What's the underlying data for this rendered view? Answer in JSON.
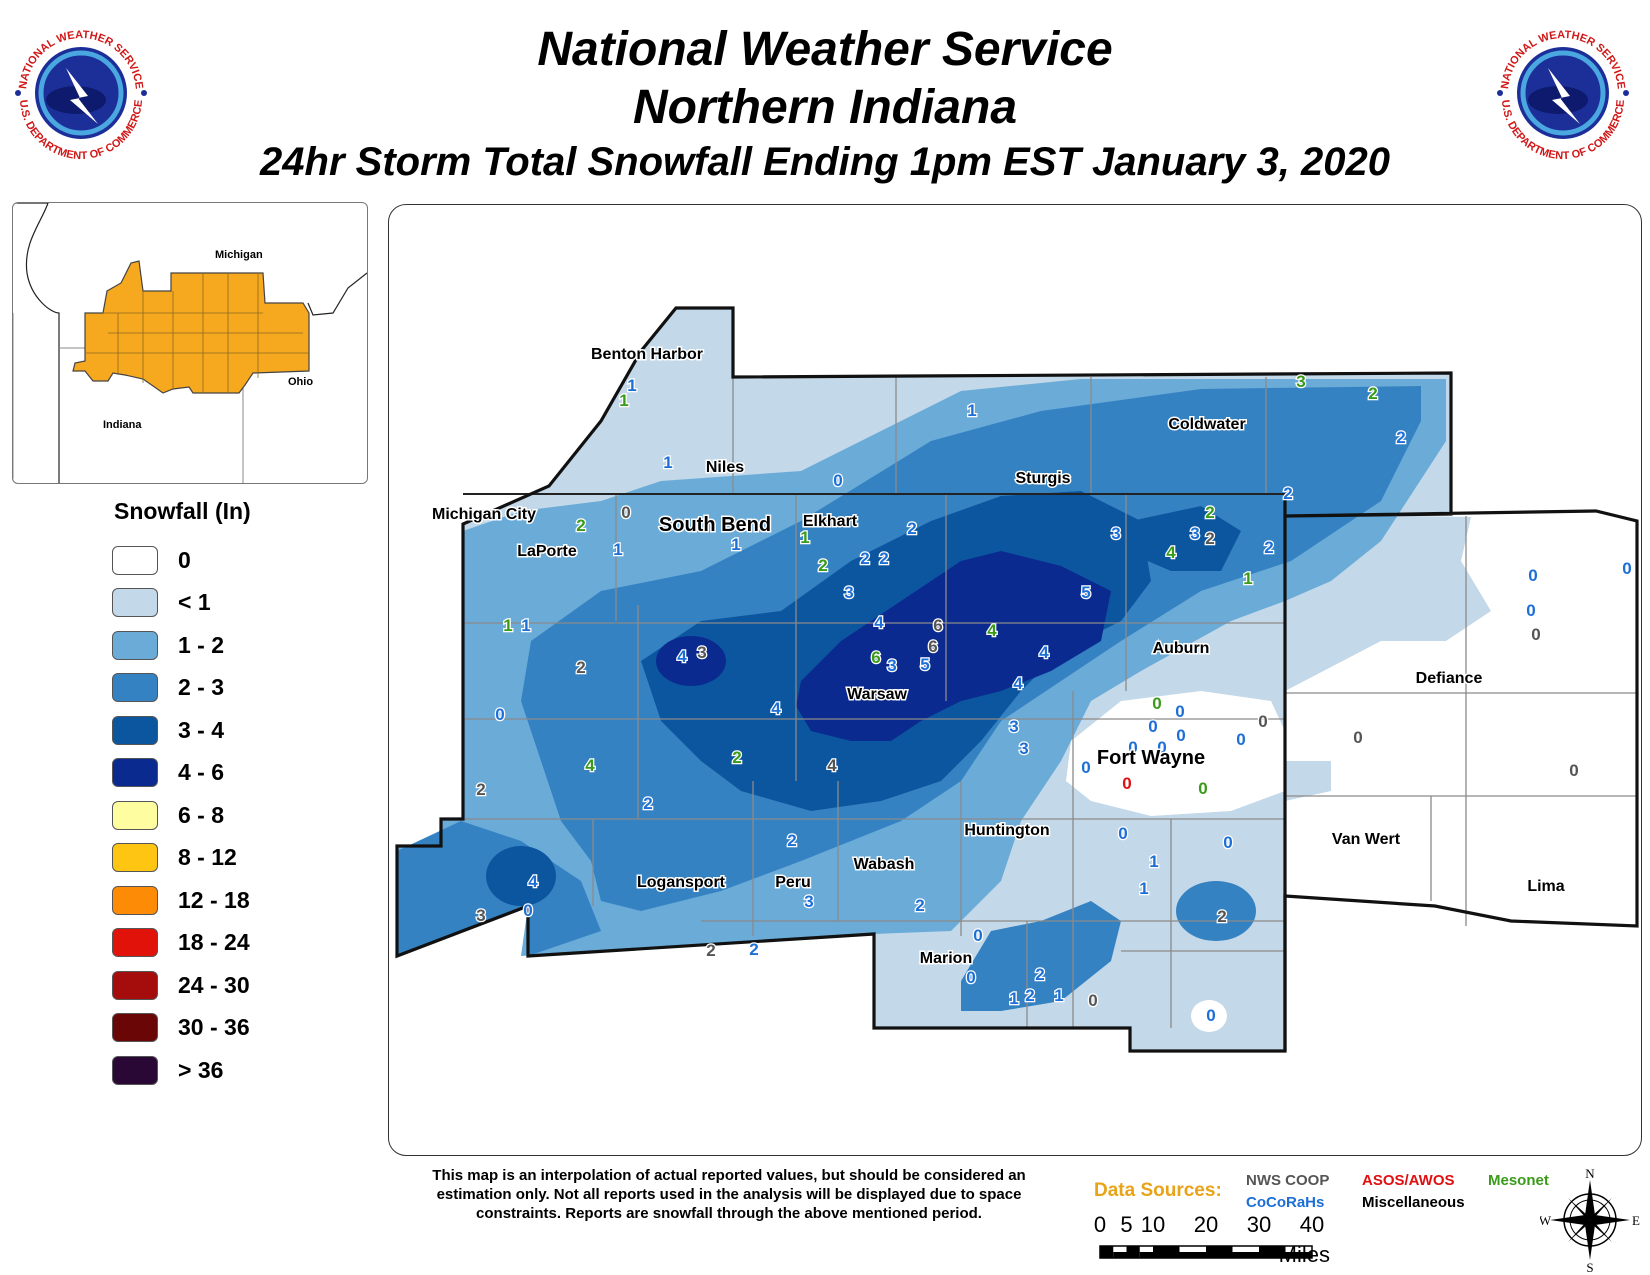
{
  "title": {
    "line1": "National Weather Service",
    "line2": "Northern Indiana",
    "line3": "24hr Storm Total Snowfall Ending 1pm EST January 3, 2020"
  },
  "seal": {
    "top_text": "NATIONAL WEATHER SERVICE",
    "bottom_text": "U.S. DEPARTMENT OF COMMERCE"
  },
  "inset": {
    "labels": {
      "michigan": "Michigan",
      "ohio": "Ohio",
      "indiana": "Indiana"
    },
    "fill_color": "#f6a81e"
  },
  "legend": {
    "title": "Snowfall (In)",
    "items": [
      {
        "label": "0",
        "color": "#ffffff"
      },
      {
        "label": "< 1",
        "color": "#c3d8e8"
      },
      {
        "label": "1 - 2",
        "color": "#6aabd8"
      },
      {
        "label": "2 - 3",
        "color": "#3582c3"
      },
      {
        "label": "3 - 4",
        "color": "#0c56a0"
      },
      {
        "label": "4 - 6",
        "color": "#0a2a90"
      },
      {
        "label": "6 - 8",
        "color": "#fefea0"
      },
      {
        "label": "8 - 12",
        "color": "#fec612"
      },
      {
        "label": "12 - 18",
        "color": "#fd8b06"
      },
      {
        "label": "18 - 24",
        "color": "#e0120a"
      },
      {
        "label": "24 - 30",
        "color": "#a50c0c"
      },
      {
        "label": "30 - 36",
        "color": "#6a0606"
      },
      {
        "label": "> 36",
        "color": "#2a0836"
      }
    ]
  },
  "map": {
    "cities": [
      {
        "name": "Benton Harbor",
        "big": false
      },
      {
        "name": "Niles",
        "big": false
      },
      {
        "name": "Coldwater",
        "big": false
      },
      {
        "name": "Sturgis",
        "big": false
      },
      {
        "name": "Michigan City",
        "big": false
      },
      {
        "name": "South Bend",
        "big": true
      },
      {
        "name": "Elkhart",
        "big": false
      },
      {
        "name": "LaPorte",
        "big": false
      },
      {
        "name": "Auburn",
        "big": false
      },
      {
        "name": "Warsaw",
        "big": false
      },
      {
        "name": "Defiance",
        "big": false
      },
      {
        "name": "Fort Wayne",
        "big": true
      },
      {
        "name": "Huntington",
        "big": false
      },
      {
        "name": "Van Wert",
        "big": false
      },
      {
        "name": "Logansport",
        "big": false
      },
      {
        "name": "Peru",
        "big": false
      },
      {
        "name": "Wabash",
        "big": false
      },
      {
        "name": "Lima",
        "big": false
      },
      {
        "name": "Marion",
        "big": false
      }
    ],
    "observations": [
      {
        "v": "1",
        "src": "cocorahs"
      },
      {
        "v": "1",
        "src": "mesonet"
      },
      {
        "v": "1",
        "src": "cocorahs"
      },
      {
        "v": "0",
        "src": "cocorahs"
      },
      {
        "v": "1",
        "src": "cocorahs"
      },
      {
        "v": "3",
        "src": "mesonet"
      },
      {
        "v": "2",
        "src": "mesonet"
      },
      {
        "v": "2",
        "src": "cocorahs"
      },
      {
        "v": "2",
        "src": "cocorahs"
      },
      {
        "v": "2",
        "src": "mesonet"
      },
      {
        "v": "0",
        "src": "coop"
      },
      {
        "v": "1",
        "src": "cocorahs"
      },
      {
        "v": "1",
        "src": "cocorahs"
      },
      {
        "v": "1",
        "src": "mesonet"
      },
      {
        "v": "2",
        "src": "mesonet"
      },
      {
        "v": "2",
        "src": "cocorahs"
      },
      {
        "v": "2",
        "src": "cocorahs"
      },
      {
        "v": "2",
        "src": "cocorahs"
      },
      {
        "v": "3",
        "src": "cocorahs"
      },
      {
        "v": "2",
        "src": "mesonet"
      },
      {
        "v": "3",
        "src": "cocorahs"
      },
      {
        "v": "2",
        "src": "coop"
      },
      {
        "v": "4",
        "src": "mesonet"
      },
      {
        "v": "2",
        "src": "cocorahs"
      },
      {
        "v": "1",
        "src": "mesonet"
      },
      {
        "v": "3",
        "src": "cocorahs"
      },
      {
        "v": "5",
        "src": "cocorahs"
      },
      {
        "v": "1",
        "src": "mesonet"
      },
      {
        "v": "1",
        "src": "cocorahs"
      },
      {
        "v": "2",
        "src": "coop"
      },
      {
        "v": "4",
        "src": "cocorahs"
      },
      {
        "v": "3",
        "src": "coop"
      },
      {
        "v": "4",
        "src": "cocorahs"
      },
      {
        "v": "6",
        "src": "coop"
      },
      {
        "v": "6",
        "src": "coop"
      },
      {
        "v": "6",
        "src": "mesonet"
      },
      {
        "v": "3",
        "src": "cocorahs"
      },
      {
        "v": "5",
        "src": "cocorahs"
      },
      {
        "v": "4",
        "src": "mesonet"
      },
      {
        "v": "4",
        "src": "cocorahs"
      },
      {
        "v": "4",
        "src": "cocorahs"
      },
      {
        "v": "0",
        "src": "cocorahs"
      },
      {
        "v": "4",
        "src": "cocorahs"
      },
      {
        "v": "2",
        "src": "mesonet"
      },
      {
        "v": "4",
        "src": "coop"
      },
      {
        "v": "4",
        "src": "mesonet"
      },
      {
        "v": "3",
        "src": "cocorahs"
      },
      {
        "v": "3",
        "src": "cocorahs"
      },
      {
        "v": "2",
        "src": "coop"
      },
      {
        "v": "2",
        "src": "cocorahs"
      },
      {
        "v": "0",
        "src": "mesonet"
      },
      {
        "v": "0",
        "src": "cocorahs"
      },
      {
        "v": "0",
        "src": "cocorahs"
      },
      {
        "v": "0",
        "src": "cocorahs"
      },
      {
        "v": "0",
        "src": "cocorahs"
      },
      {
        "v": "0",
        "src": "cocorahs"
      },
      {
        "v": "0",
        "src": "cocorahs"
      },
      {
        "v": "0",
        "src": "asos"
      },
      {
        "v": "0",
        "src": "mesonet"
      },
      {
        "v": "0",
        "src": "cocorahs"
      },
      {
        "v": "0",
        "src": "coop"
      },
      {
        "v": "0",
        "src": "coop"
      },
      {
        "v": "0",
        "src": "coop"
      },
      {
        "v": "0",
        "src": "cocorahs"
      },
      {
        "v": "0",
        "src": "cocorahs"
      },
      {
        "v": "0",
        "src": "cocorahs"
      },
      {
        "v": "0",
        "src": "cocorahs"
      },
      {
        "v": "0",
        "src": "coop"
      },
      {
        "v": "0",
        "src": "cocorahs"
      },
      {
        "v": "1",
        "src": "cocorahs"
      },
      {
        "v": "1",
        "src": "cocorahs"
      },
      {
        "v": "2",
        "src": "coop"
      },
      {
        "v": "0",
        "src": "cocorahs"
      },
      {
        "v": "4",
        "src": "cocorahs"
      },
      {
        "v": "3",
        "src": "coop"
      },
      {
        "v": "2",
        "src": "coop"
      },
      {
        "v": "2",
        "src": "cocorahs"
      },
      {
        "v": "2",
        "src": "cocorahs"
      },
      {
        "v": "3",
        "src": "cocorahs"
      },
      {
        "v": "2",
        "src": "cocorahs"
      },
      {
        "v": "0",
        "src": "cocorahs"
      },
      {
        "v": "0",
        "src": "cocorahs"
      },
      {
        "v": "2",
        "src": "cocorahs"
      },
      {
        "v": "1",
        "src": "cocorahs"
      },
      {
        "v": "2",
        "src": "cocorahs"
      },
      {
        "v": "1",
        "src": "cocorahs"
      },
      {
        "v": "0",
        "src": "coop"
      },
      {
        "v": "0",
        "src": "cocorahs"
      }
    ]
  },
  "disclaimer": "This map is an interpolation of actual reported values, but should be considered an estimation only. Not all reports used in the analysis will be displayed due to space constraints. Reports are snowfall through the above mentioned period.",
  "data_sources": {
    "label": "Data Sources:",
    "coop": {
      "label": "NWS COOP",
      "color": "#555555"
    },
    "asos": {
      "label": "ASOS/AWOS",
      "color": "#e01010"
    },
    "mesonet": {
      "label": "Mesonet",
      "color": "#3a9a1a"
    },
    "cocorahs": {
      "label": "CoCoRaHs",
      "color": "#1d6fd6"
    },
    "misc": {
      "label": "Miscellaneous",
      "color": "#000000"
    }
  },
  "scale_bar": {
    "ticks": [
      "0",
      "5",
      "10",
      "20",
      "30",
      "40"
    ],
    "unit": "Miles"
  },
  "compass": {
    "n": "N",
    "s": "S",
    "e": "E",
    "w": "W"
  }
}
